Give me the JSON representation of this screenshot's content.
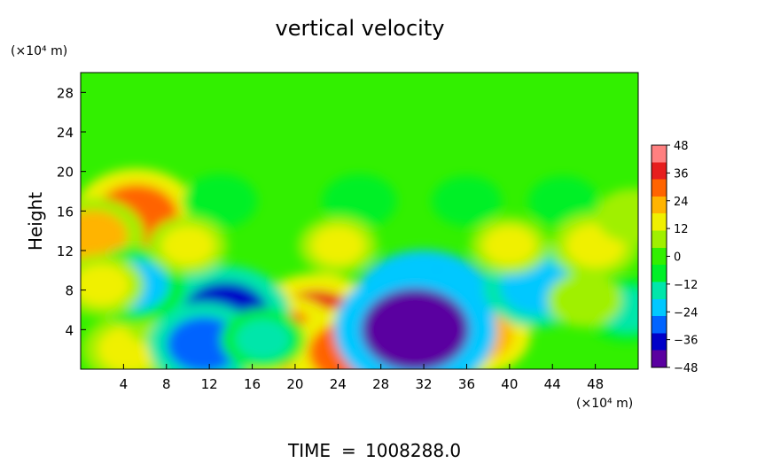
{
  "chart_data": {
    "type": "heatmap",
    "title": "vertical velocity",
    "ylabel": "Height",
    "xunit": "(×10⁴ m)",
    "yunit": "(×10⁴ m)",
    "xlim": [
      0,
      52
    ],
    "ylim": [
      0,
      30
    ],
    "xticks": [
      4,
      8,
      12,
      16,
      20,
      24,
      28,
      32,
      36,
      40,
      44,
      48
    ],
    "yticks": [
      4,
      8,
      12,
      16,
      20,
      24,
      28
    ],
    "colorbar": {
      "range": [
        -48,
        48
      ],
      "ticks": [
        48,
        36,
        24,
        12,
        0,
        -12,
        -24,
        -36,
        -48
      ],
      "colors": [
        "#5a00a0",
        "#0000c8",
        "#0064ff",
        "#00c8ff",
        "#00e6aa",
        "#00f028",
        "#32f000",
        "#a0f000",
        "#f0f000",
        "#ffb400",
        "#ff6400",
        "#e61e1e",
        "#ff8080"
      ]
    },
    "background_value": 0,
    "features": [
      {
        "x": 22,
        "y": 4.5,
        "value": 36
      },
      {
        "x": 19,
        "y": 3,
        "value": 28
      },
      {
        "x": 25,
        "y": 1.7,
        "value": 30
      },
      {
        "x": 37,
        "y": 3.5,
        "value": 24
      },
      {
        "x": 4.5,
        "y": 2,
        "value": 18
      },
      {
        "x": 5.2,
        "y": 15.5,
        "value": 32
      },
      {
        "x": 1.2,
        "y": 13.5,
        "value": 22
      },
      {
        "x": 7.5,
        "y": 5,
        "value": 10
      },
      {
        "x": 13.5,
        "y": 5.5,
        "value": -34
      },
      {
        "x": 11.5,
        "y": 2.5,
        "value": -26
      },
      {
        "x": 30,
        "y": 4.5,
        "value": -34
      },
      {
        "x": 32,
        "y": 6.5,
        "value": -40
      },
      {
        "x": 31.2,
        "y": 4,
        "value": -48
      },
      {
        "x": 5,
        "y": 8.5,
        "value": -22
      },
      {
        "x": 42.5,
        "y": 8.3,
        "value": -24
      },
      {
        "x": 51,
        "y": 6,
        "value": -16
      },
      {
        "x": 17,
        "y": 3,
        "value": -14
      },
      {
        "x": 13,
        "y": 17,
        "value": -10
      },
      {
        "x": 26,
        "y": 17,
        "value": -10
      },
      {
        "x": 36,
        "y": 17,
        "value": -8
      },
      {
        "x": 45,
        "y": 17,
        "value": -8
      },
      {
        "x": 10,
        "y": 12.5,
        "value": 12
      },
      {
        "x": 24,
        "y": 12.5,
        "value": 12
      },
      {
        "x": 40,
        "y": 12.5,
        "value": 12
      },
      {
        "x": 48,
        "y": 12.5,
        "value": 16
      },
      {
        "x": 51.5,
        "y": 15.5,
        "value": 10
      },
      {
        "x": 47,
        "y": 7,
        "value": 10
      },
      {
        "x": 2,
        "y": 8.5,
        "value": 14
      }
    ]
  },
  "footer": {
    "time_label": "TIME",
    "equals": "=",
    "time_value": "1008288.0"
  }
}
